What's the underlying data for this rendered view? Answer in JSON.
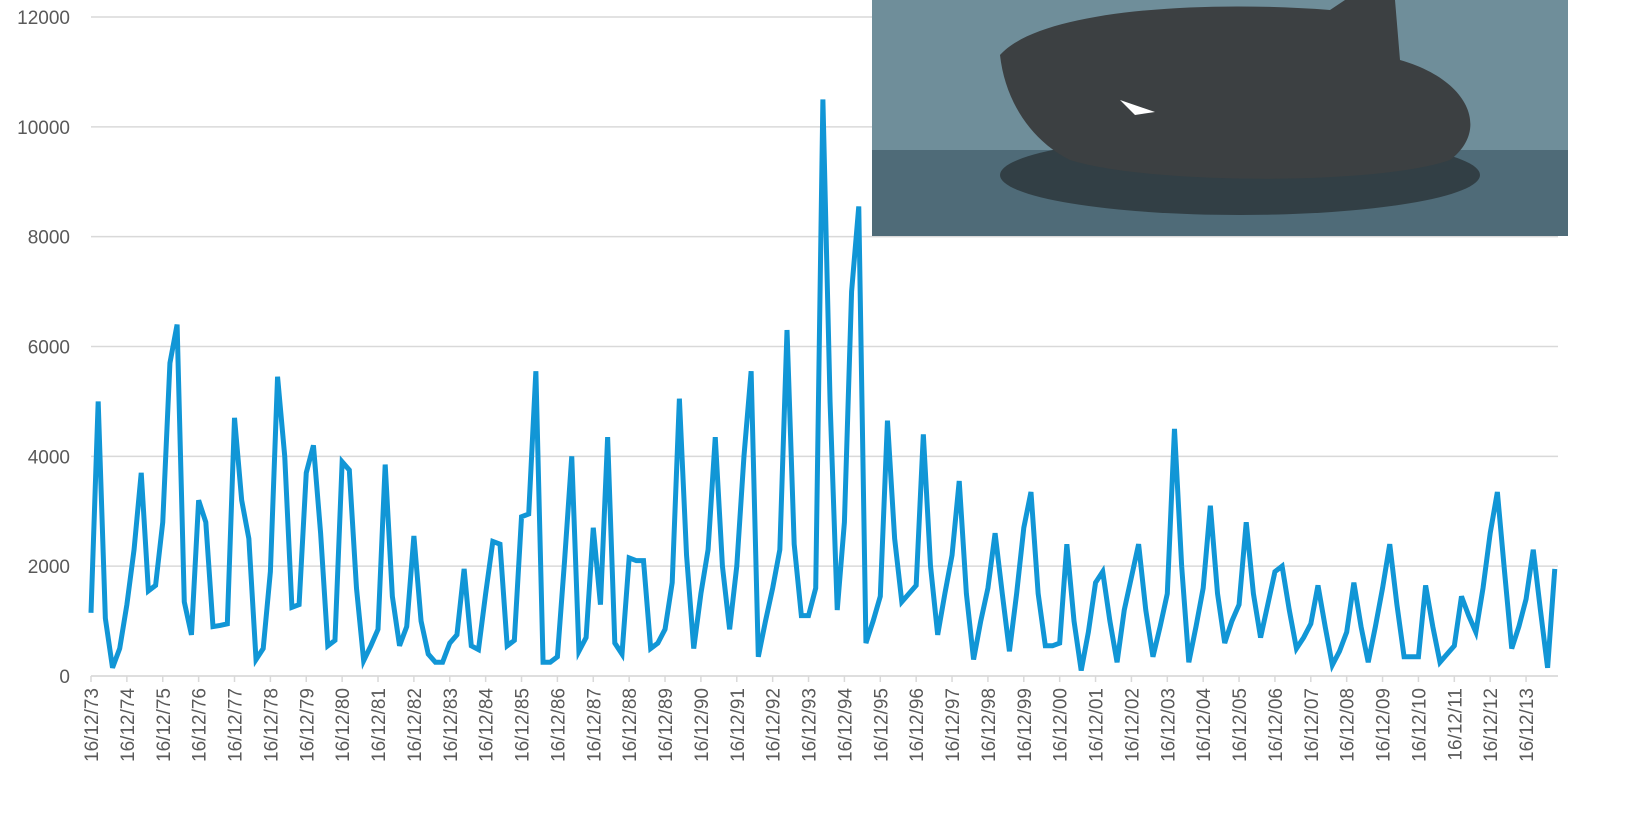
{
  "chart_data": {
    "type": "line",
    "color": "#1196d6",
    "grid": true,
    "ylim": [
      0,
      12000
    ],
    "yticks": [
      0,
      2000,
      4000,
      6000,
      8000,
      10000,
      12000
    ],
    "categories": [
      "16/12/73",
      null,
      null,
      null,
      null,
      "16/12/74",
      null,
      null,
      null,
      null,
      "16/12/75",
      null,
      null,
      null,
      null,
      "16/12/76",
      null,
      null,
      null,
      null,
      "16/12/77",
      null,
      null,
      null,
      null,
      "16/12/78",
      null,
      null,
      null,
      null,
      "16/12/79",
      null,
      null,
      null,
      null,
      "16/12/80",
      null,
      null,
      null,
      null,
      "16/12/81",
      null,
      null,
      null,
      null,
      "16/12/82",
      null,
      null,
      null,
      null,
      "16/12/83",
      null,
      null,
      null,
      null,
      "16/12/84",
      null,
      null,
      null,
      null,
      "16/12/85",
      null,
      null,
      null,
      null,
      "16/12/86",
      null,
      null,
      null,
      null,
      "16/12/87",
      null,
      null,
      null,
      null,
      "16/12/88",
      null,
      null,
      null,
      null,
      "16/12/89",
      null,
      null,
      null,
      null,
      "16/12/90",
      null,
      null,
      null,
      null,
      "16/12/91",
      null,
      null,
      null,
      null,
      "16/12/92",
      null,
      null,
      null,
      null,
      "16/12/93",
      null,
      null,
      null,
      null,
      "16/12/94",
      null,
      null,
      null,
      null,
      "16/12/95",
      null,
      null,
      null,
      null,
      "16/12/96",
      null,
      null,
      null,
      null,
      "16/12/97",
      null,
      null,
      null,
      null,
      "16/12/98",
      null,
      null,
      null,
      null,
      "16/12/99",
      null,
      null,
      null,
      null,
      "16/12/00",
      null,
      null,
      null,
      null,
      "16/12/01",
      null,
      null,
      null,
      null,
      "16/12/02",
      null,
      null,
      null,
      null,
      "16/12/03",
      null,
      null,
      null,
      null,
      "16/12/04",
      null,
      null,
      null,
      null,
      "16/12/05",
      null,
      null,
      null,
      null,
      "16/12/06",
      null,
      null,
      null,
      null,
      "16/12/07",
      null,
      null,
      null,
      null,
      "16/12/08",
      null,
      null,
      null,
      null,
      "16/12/09",
      null,
      null,
      null,
      null,
      "16/12/10",
      null,
      null,
      null,
      null,
      "16/12/11",
      null,
      null,
      null,
      null,
      "16/12/12",
      null,
      null,
      null,
      null,
      "16/12/13",
      null,
      null,
      null,
      null
    ],
    "values": [
      1150,
      5000,
      1050,
      150,
      500,
      1300,
      2300,
      3700,
      1550,
      1650,
      2800,
      5700,
      6400,
      1350,
      750,
      3200,
      2800,
      900,
      920,
      950,
      4700,
      3200,
      2500,
      300,
      500,
      1900,
      5450,
      4000,
      1250,
      1300,
      3700,
      4200,
      2600,
      550,
      650,
      3900,
      3750,
      1600,
      280,
      550,
      850,
      3850,
      1450,
      550,
      900,
      2550,
      1000,
      400,
      250,
      250,
      600,
      750,
      1950,
      550,
      480,
      1500,
      2450,
      2400,
      550,
      650,
      2900,
      2950,
      5550,
      250,
      250,
      350,
      2100,
      4000,
      450,
      700,
      2700,
      1300,
      4350,
      600,
      400,
      2150,
      2100,
      2100,
      500,
      600,
      850,
      1700,
      5050,
      2200,
      500,
      1500,
      2300,
      4350,
      2000,
      850,
      2000,
      4000,
      5550,
      350,
      1000,
      1600,
      2300,
      6300,
      2400,
      1100,
      1100,
      1600,
      10500,
      5000,
      1200,
      2800,
      7000,
      8550,
      600,
      1000,
      1450,
      4650,
      2500,
      1350,
      1500,
      1650,
      4400,
      2000,
      750,
      1500,
      2200,
      3550,
      1500,
      300,
      1000,
      1600,
      2600,
      1500,
      450,
      1500,
      2700,
      3350,
      1500,
      550,
      550,
      600,
      2400,
      1000,
      100,
      800,
      1700,
      1900,
      1000,
      250,
      1200,
      1800,
      2400,
      1200,
      350,
      900,
      1500,
      4500,
      2000,
      250,
      900,
      1600,
      3100,
      1500,
      600,
      1000,
      1300,
      2800,
      1500,
      700,
      1300,
      1900,
      2000,
      1200,
      500,
      700,
      950,
      1650,
      900,
      200,
      450,
      800,
      1700,
      900,
      250,
      900,
      1600,
      2400,
      1300,
      350,
      350,
      350,
      1650,
      900,
      250,
      400,
      550,
      1450,
      1100,
      800,
      1600,
      2600,
      3350,
      1900,
      500,
      900,
      1400,
      2300,
      1200,
      150,
      1950
    ]
  }
}
